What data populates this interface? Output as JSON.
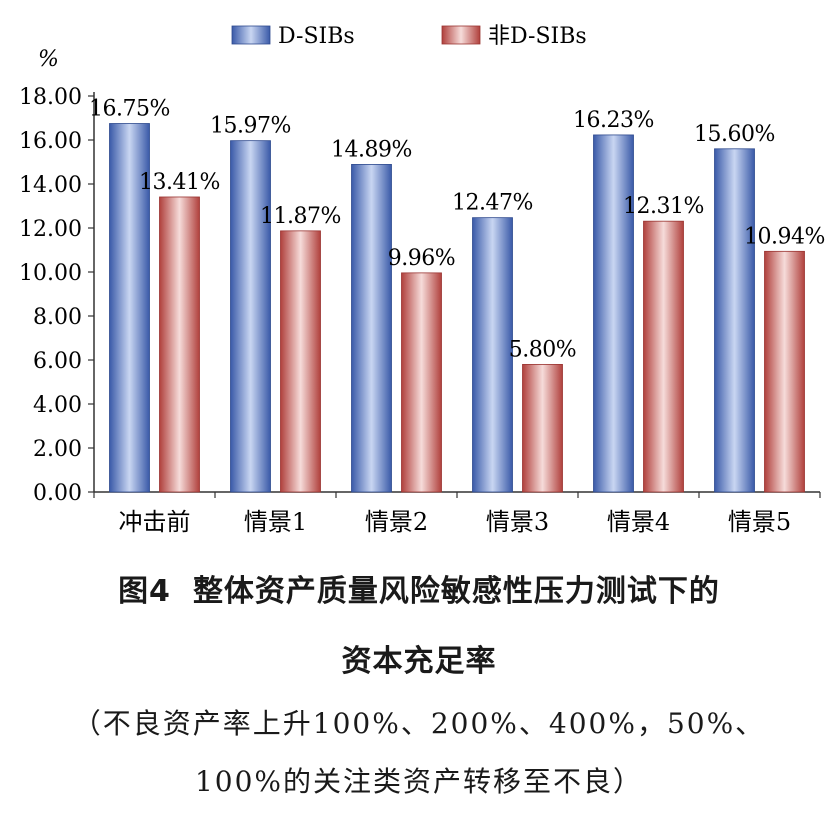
{
  "chart_data": {
    "type": "bar",
    "categories": [
      "冲击前",
      "情景1",
      "情景2",
      "情景3",
      "情景4",
      "情景5"
    ],
    "series": [
      {
        "name": "D-SIBs",
        "values": [
          16.75,
          15.97,
          14.89,
          12.47,
          16.23,
          15.6
        ],
        "labels": [
          "16.75%",
          "15.97%",
          "14.89%",
          "12.47%",
          "16.23%",
          "15.60%"
        ],
        "color": "#4a6fc0"
      },
      {
        "name": "非D-SIBs",
        "values": [
          13.41,
          11.87,
          9.96,
          5.8,
          12.31,
          10.94
        ],
        "labels": [
          "13.41%",
          "11.87%",
          "9.96%",
          "5.80%",
          "12.31%",
          "10.94%"
        ],
        "color": "#c0504d"
      }
    ],
    "ylabel": "%",
    "ylim": [
      0,
      18
    ],
    "yticks": [
      "0.00",
      "2.00",
      "4.00",
      "6.00",
      "8.00",
      "10.00",
      "12.00",
      "14.00",
      "16.00",
      "18.00"
    ],
    "grid": false,
    "legend_position": "top"
  },
  "caption": {
    "figure_label": "图4",
    "title_line1": "整体资产质量风险敏感性压力测试下的",
    "title_line2": "资本充足率",
    "note_line1": "（不良资产率上升100%、200%、400%，50%、",
    "note_line2": "100%的关注类资产转移至不良）"
  }
}
